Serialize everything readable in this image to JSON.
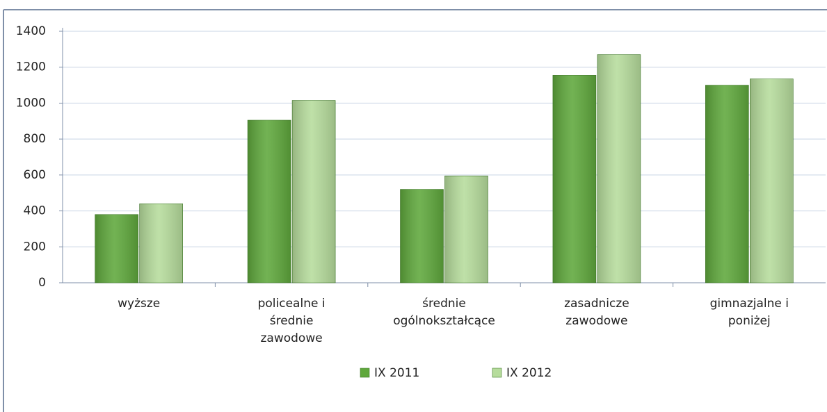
{
  "chart_data": {
    "type": "bar",
    "categories": [
      [
        "wyższe"
      ],
      [
        "policealne i",
        "średnie",
        "zawodowe"
      ],
      [
        "średnie",
        "ogólnokształcące"
      ],
      [
        "zasadnicze",
        "zawodowe"
      ],
      [
        "gimnazjalne i",
        "poniżej"
      ]
    ],
    "series": [
      {
        "name": "IX 2011",
        "color": "#5fa83c",
        "values": [
          380,
          905,
          520,
          1155,
          1100
        ]
      },
      {
        "name": "IX 2012",
        "color": "#b6dc9c",
        "values": [
          440,
          1015,
          595,
          1270,
          1135
        ]
      }
    ],
    "ylim": [
      0,
      1400
    ],
    "yticks": [
      0,
      200,
      400,
      600,
      800,
      1000,
      1200,
      1400
    ],
    "grid": true,
    "legend": "bottom"
  }
}
